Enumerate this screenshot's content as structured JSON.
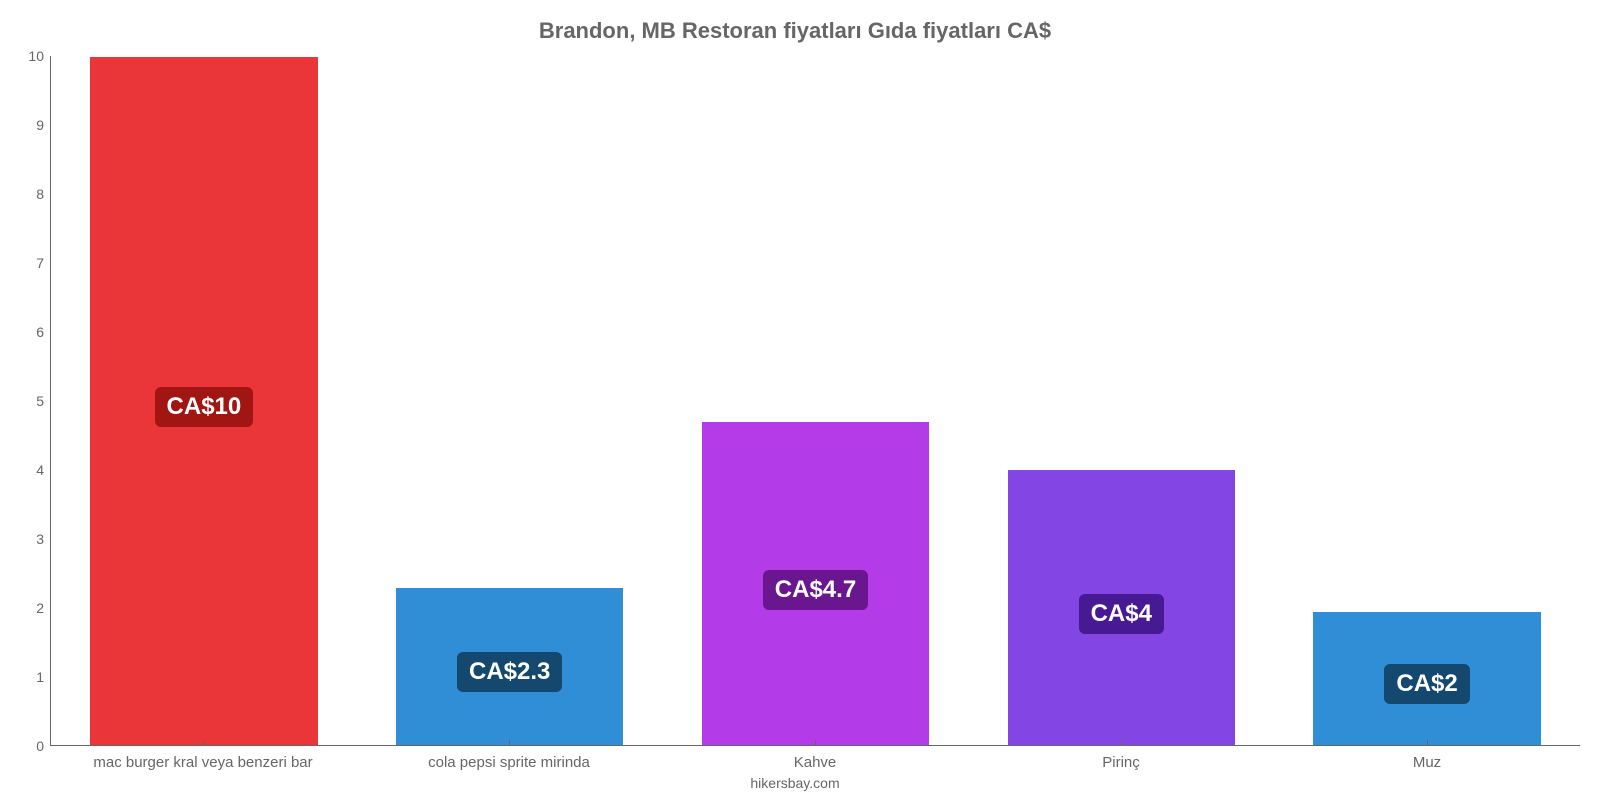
{
  "chart": {
    "type": "bar",
    "title": "Brandon, MB Restoran fiyatları Gıda fiyatları CA$",
    "title_color": "#666666",
    "title_fontsize": 22,
    "footer": "hikersbay.com",
    "footer_color": "#666666",
    "footer_fontsize": 14,
    "background_color": "#ffffff",
    "axis_line_color": "#666666",
    "tick_font_color": "#666666",
    "tick_fontsize": 14,
    "x_tick_fontsize": 15,
    "ylim_min": 0,
    "ylim_max": 10,
    "ytick_step": 1,
    "yticks": [
      {
        "v": 0,
        "label": "0"
      },
      {
        "v": 1,
        "label": "1"
      },
      {
        "v": 2,
        "label": "2"
      },
      {
        "v": 3,
        "label": "3"
      },
      {
        "v": 4,
        "label": "4"
      },
      {
        "v": 5,
        "label": "5"
      },
      {
        "v": 6,
        "label": "6"
      },
      {
        "v": 7,
        "label": "7"
      },
      {
        "v": 8,
        "label": "8"
      },
      {
        "v": 9,
        "label": "9"
      },
      {
        "v": 10,
        "label": "10"
      }
    ],
    "bar_width_pct": 75,
    "value_label_fontsize": 24,
    "categories": [
      {
        "name": "mac burger kral veya benzeri bar",
        "value": 10,
        "display_label": "CA$10",
        "bar_color": "#eb3639",
        "label_bg": "#a11613"
      },
      {
        "name": "cola pepsi sprite mirinda",
        "value": 2.3,
        "display_label": "CA$2.3",
        "bar_color": "#2f8ed6",
        "label_bg": "#14486f"
      },
      {
        "name": "Kahve",
        "value": 4.7,
        "display_label": "CA$4.7",
        "bar_color": "#b43be8",
        "label_bg": "#6a168e"
      },
      {
        "name": "Pirinç",
        "value": 4.0,
        "display_label": "CA$4",
        "bar_color": "#8346e4",
        "label_bg": "#471a94"
      },
      {
        "name": "Muz",
        "value": 1.95,
        "display_label": "CA$2",
        "bar_color": "#2f8ed6",
        "label_bg": "#14486f"
      }
    ]
  }
}
